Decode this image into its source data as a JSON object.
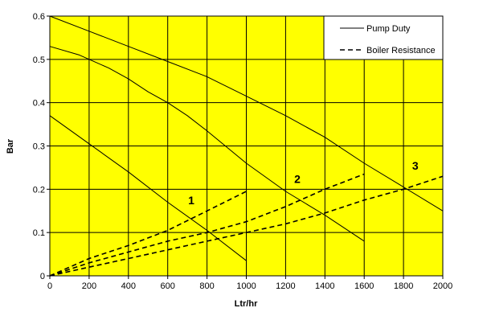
{
  "chart_data": {
    "type": "line",
    "title": "",
    "xlabel": "Ltr/hr",
    "ylabel": "Bar",
    "xlim": [
      0,
      2000
    ],
    "ylim": [
      0,
      0.6
    ],
    "xticks": [
      0,
      200,
      400,
      600,
      800,
      1000,
      1200,
      1400,
      1600,
      1800,
      2000
    ],
    "yticks": [
      0,
      0.1,
      0.2,
      0.3,
      0.4,
      0.5,
      0.6
    ],
    "grid": true,
    "legend_position": "top-right",
    "colors": {
      "plot_background": "#ffff00",
      "lines": "#000000",
      "grid": "#000000"
    },
    "legend": [
      {
        "label": "Pump Duty",
        "style": "solid"
      },
      {
        "label": "Boiler Resistance",
        "style": "dashed"
      }
    ],
    "series": [
      {
        "name": "Pump Duty",
        "style": "solid",
        "x": [
          0,
          200,
          400,
          600,
          800,
          1000,
          1200,
          1400,
          1600,
          1800,
          2000
        ],
        "y": [
          0.6,
          0.565,
          0.53,
          0.495,
          0.46,
          0.415,
          0.37,
          0.32,
          0.26,
          0.205,
          0.15
        ]
      },
      {
        "name": "Pump Duty",
        "style": "solid",
        "x": [
          0,
          150,
          200,
          300,
          400,
          500,
          600,
          700,
          800,
          1000,
          1200,
          1400,
          1600
        ],
        "y": [
          0.53,
          0.51,
          0.5,
          0.48,
          0.455,
          0.425,
          0.4,
          0.37,
          0.335,
          0.26,
          0.195,
          0.14,
          0.08
        ]
      },
      {
        "name": "Pump Duty",
        "style": "solid",
        "x": [
          0,
          200,
          400,
          600,
          800,
          1000
        ],
        "y": [
          0.37,
          0.305,
          0.24,
          0.17,
          0.105,
          0.035
        ]
      },
      {
        "name": "Boiler Resistance",
        "style": "dashed",
        "x": [
          0,
          200,
          400,
          600,
          800,
          1000
        ],
        "y": [
          0,
          0.04,
          0.07,
          0.105,
          0.15,
          0.195
        ]
      },
      {
        "name": "Boiler Resistance",
        "style": "dashed",
        "x": [
          0,
          200,
          400,
          600,
          800,
          1000,
          1200,
          1400,
          1600
        ],
        "y": [
          0,
          0.03,
          0.055,
          0.08,
          0.1,
          0.125,
          0.16,
          0.2,
          0.235
        ]
      },
      {
        "name": "Boiler Resistance",
        "style": "dashed",
        "x": [
          0,
          200,
          400,
          600,
          800,
          1000,
          1200,
          1400,
          1600,
          1800,
          2000
        ],
        "y": [
          0,
          0.02,
          0.04,
          0.06,
          0.08,
          0.1,
          0.12,
          0.145,
          0.175,
          0.2,
          0.23
        ]
      }
    ],
    "annotations": [
      {
        "text": "1",
        "x": 720,
        "y": 0.165
      },
      {
        "text": "2",
        "x": 1260,
        "y": 0.215
      },
      {
        "text": "3",
        "x": 1860,
        "y": 0.245
      }
    ]
  }
}
